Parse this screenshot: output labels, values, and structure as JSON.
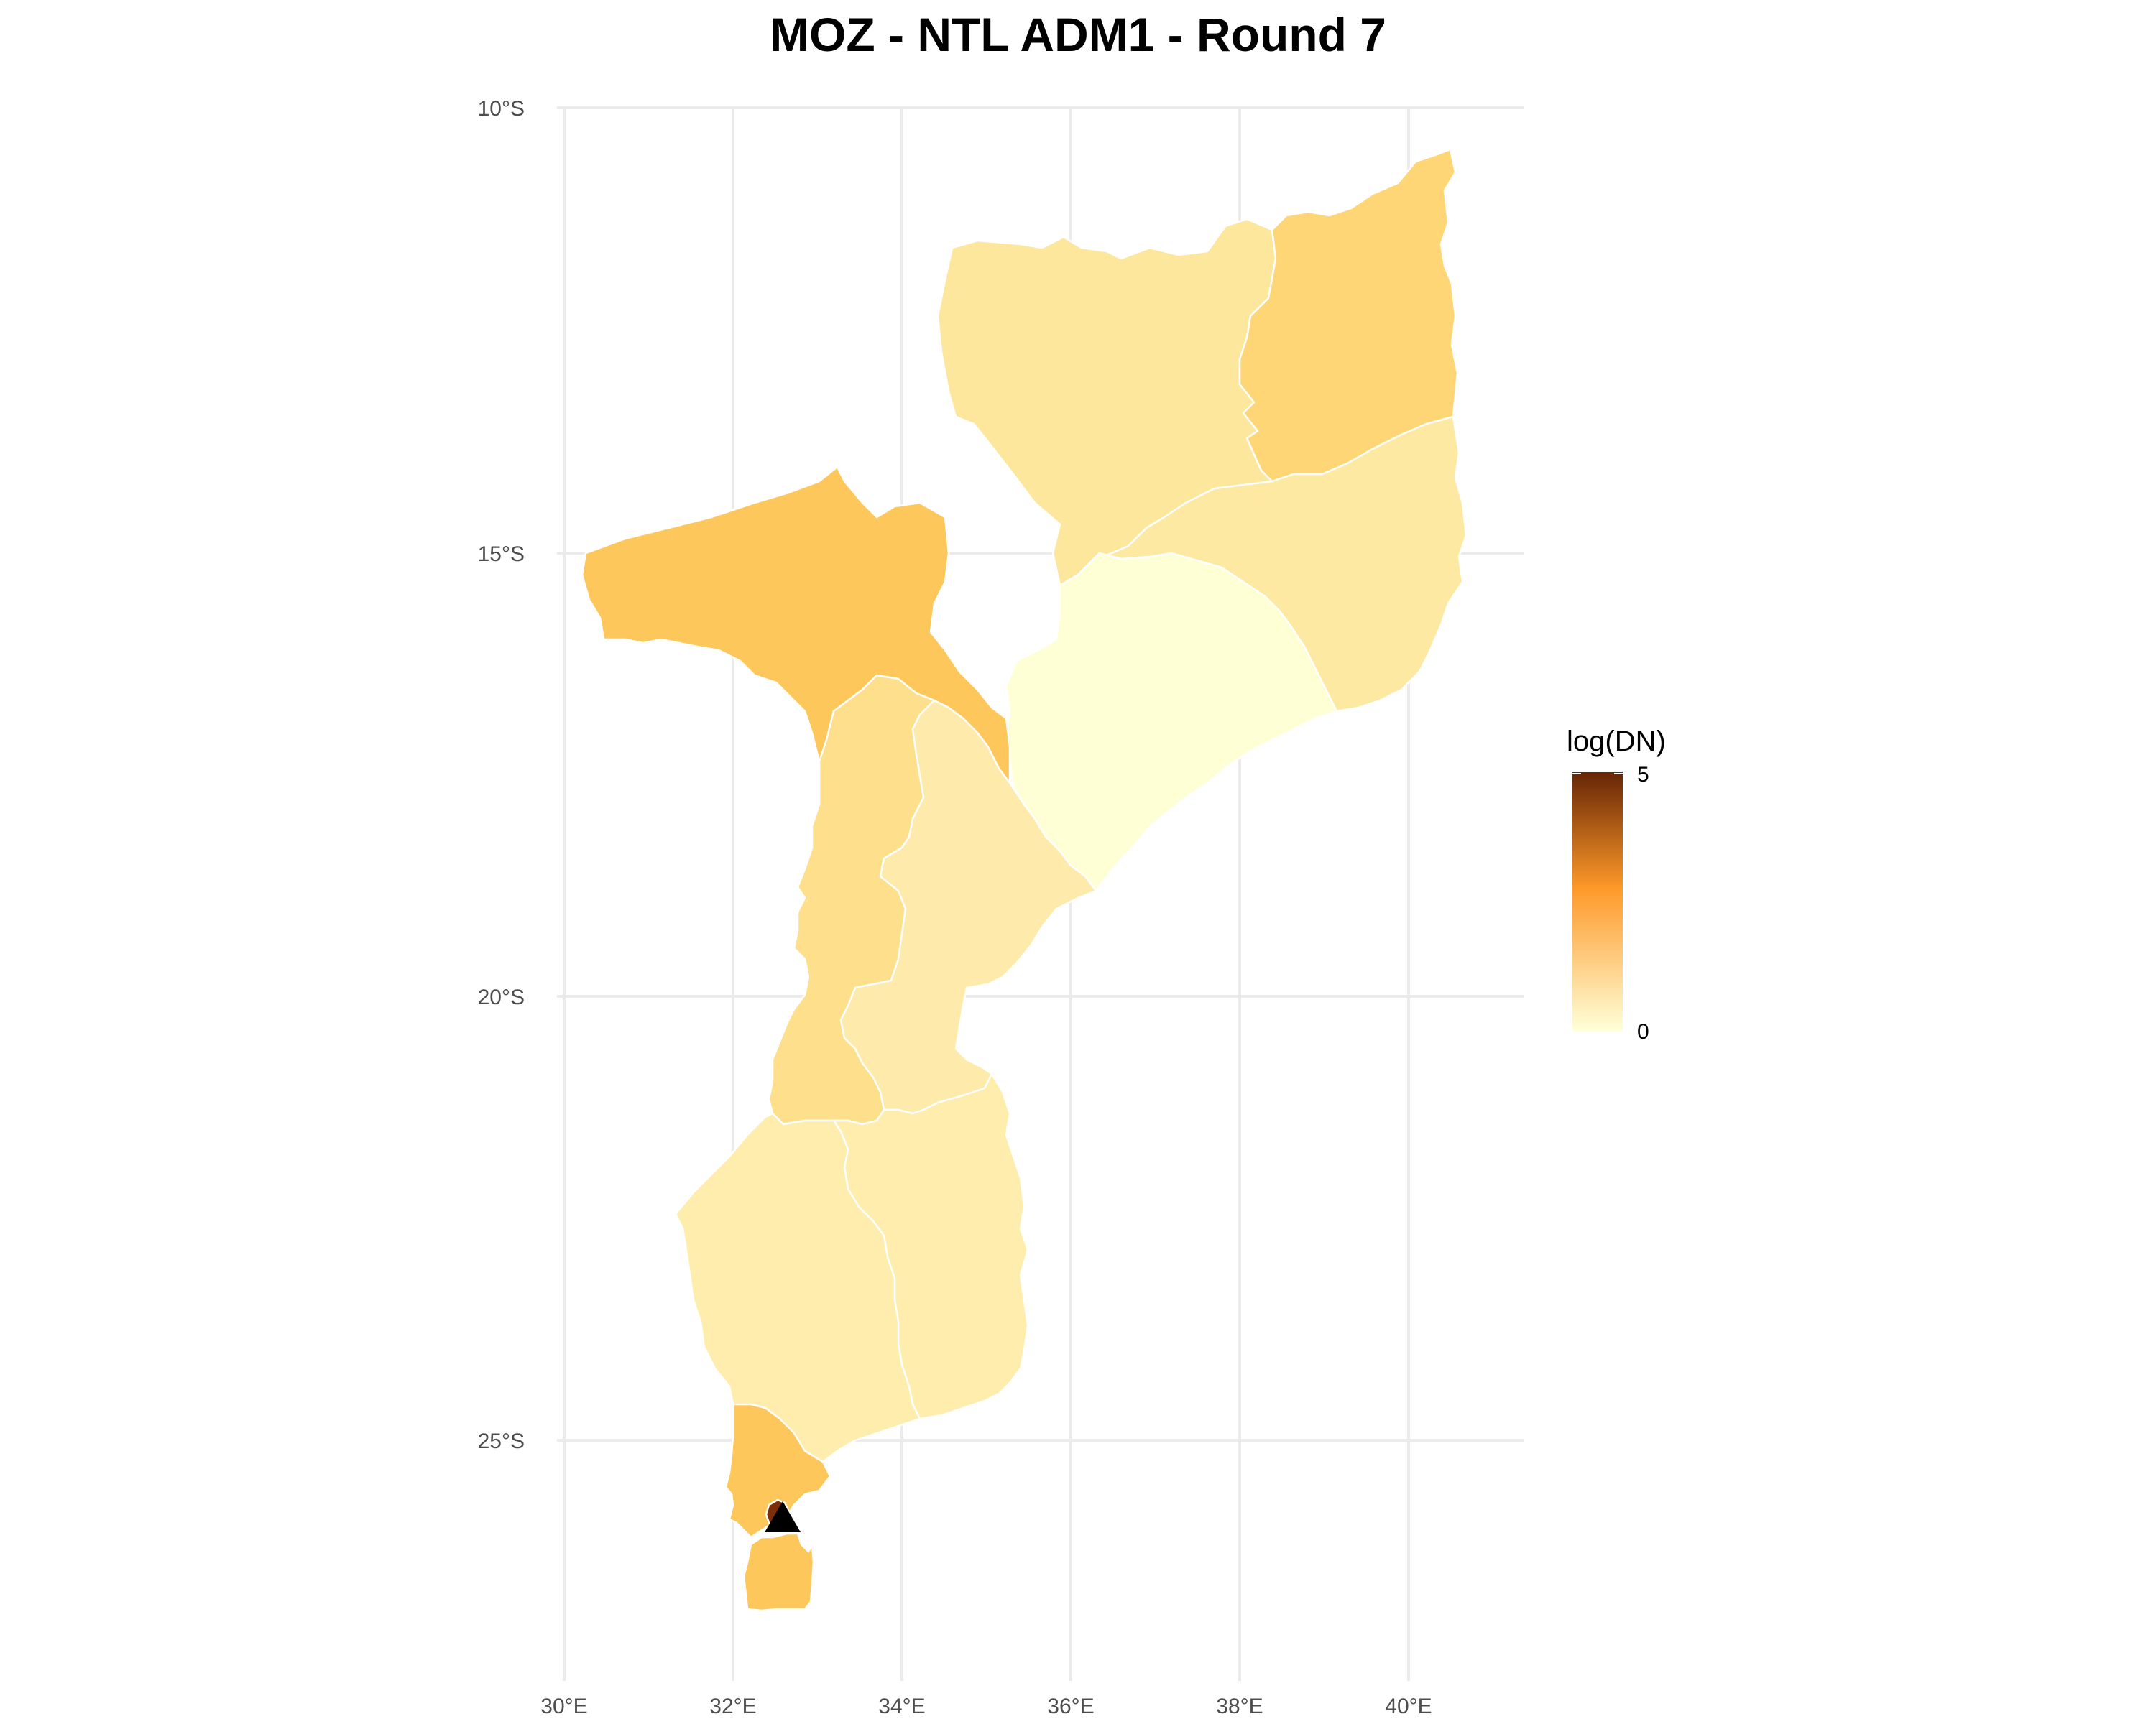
{
  "title": "MOZ - NTL ADM1 - Round 7",
  "legend": {
    "title": "log(DN)",
    "max_label": "5",
    "min_label": "0",
    "color_low": "#ffffd9",
    "color_mid": "#fe9929",
    "color_high": "#662506"
  },
  "axes": {
    "x_ticks": [
      "30°E",
      "32°E",
      "34°E",
      "36°E",
      "38°E",
      "40°E"
    ],
    "y_ticks": [
      "10°S",
      "15°S",
      "20°S",
      "25°S"
    ]
  },
  "regions": [
    {
      "id": "niassa",
      "log_dn": 0.6,
      "color": "#fde79c"
    },
    {
      "id": "cabo-delgado",
      "log_dn": 1.2,
      "color": "#fed676"
    },
    {
      "id": "nampula",
      "log_dn": 0.5,
      "color": "#fde9a2"
    },
    {
      "id": "zambezia",
      "log_dn": 0.1,
      "color": "#ffffd6"
    },
    {
      "id": "tete",
      "log_dn": 1.6,
      "color": "#fec75c"
    },
    {
      "id": "manica",
      "log_dn": 0.8,
      "color": "#fddf8c"
    },
    {
      "id": "sofala",
      "log_dn": 0.5,
      "color": "#feeaaa"
    },
    {
      "id": "inhambane",
      "log_dn": 0.4,
      "color": "#feedac"
    },
    {
      "id": "gaza",
      "log_dn": 0.4,
      "color": "#feedac"
    },
    {
      "id": "maputo",
      "log_dn": 1.6,
      "color": "#fec75c"
    },
    {
      "id": "maputo-city",
      "log_dn": 5.0,
      "color": "#7c2e07"
    }
  ],
  "marker": {
    "shape": "triangle",
    "lon": 32.57,
    "lat": -25.97,
    "color": "#000000"
  }
}
